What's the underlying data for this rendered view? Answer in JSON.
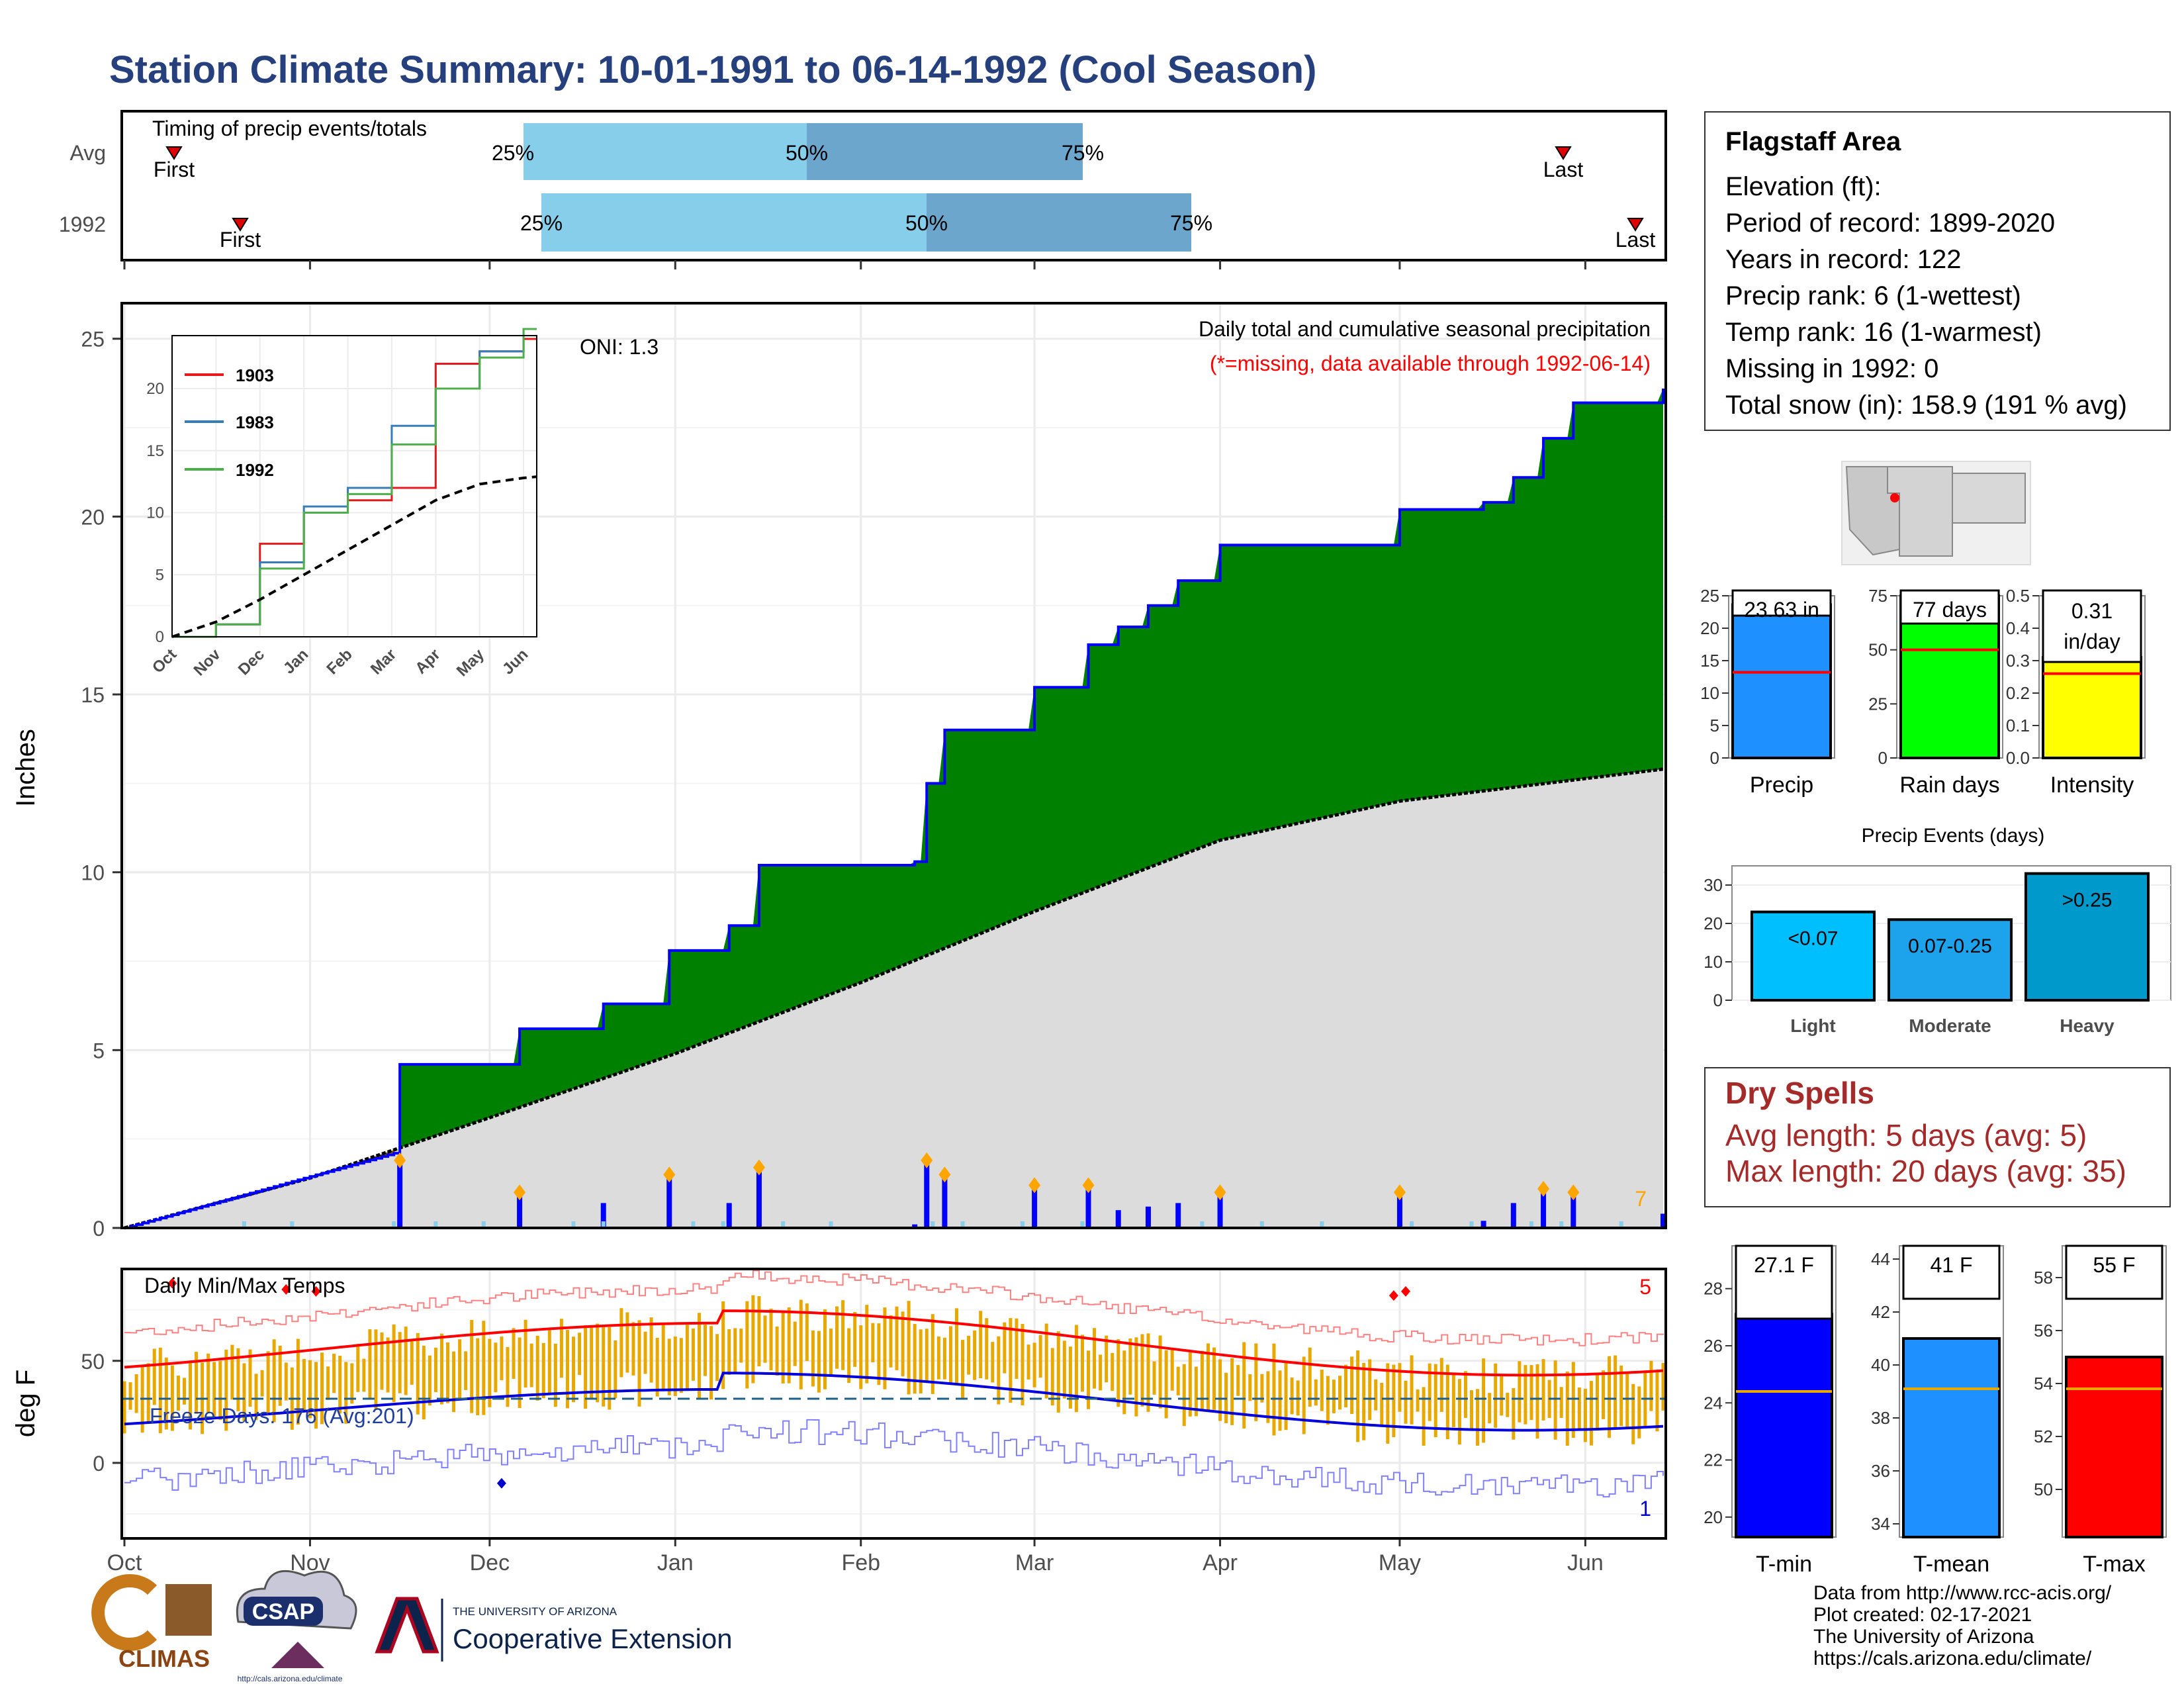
{
  "title": "Station Climate Summary: 10-01-1991 to 06-14-1992 (Cool Season)",
  "timing_panel": {
    "label": "Timing of precip events/totals",
    "rows": [
      {
        "name": "Avg",
        "first_label": "First",
        "last_label": "Last",
        "p25": "25%",
        "p50": "50%",
        "p75": "75%"
      },
      {
        "name": "1992",
        "first_label": "First",
        "last_label": "Last",
        "p25": "25%",
        "p50": "50%",
        "p75": "75%"
      }
    ]
  },
  "main_panel": {
    "ylabel": "Inches",
    "header": "Daily total and cumulative seasonal precipitation",
    "missing_note": "(*=missing, data available through 1992-06-14)",
    "oni": "ONI: 1.3",
    "count_label": "7",
    "yticks": [
      "0",
      "5",
      "10",
      "15",
      "20",
      "25"
    ],
    "months": [
      "Oct",
      "Nov",
      "Dec",
      "Jan",
      "Feb",
      "Mar",
      "Apr",
      "May",
      "Jun"
    ]
  },
  "inset": {
    "legend": [
      {
        "name": "1903",
        "color": "#e41a1c"
      },
      {
        "name": "1983",
        "color": "#377eb8"
      },
      {
        "name": "1992",
        "color": "#4daf4a"
      }
    ],
    "yticks": [
      "0",
      "5",
      "10",
      "15",
      "20"
    ],
    "months": [
      "Oct",
      "Nov",
      "Dec",
      "Jan",
      "Feb",
      "Mar",
      "Apr",
      "May",
      "Jun"
    ]
  },
  "temp_panel": {
    "ylabel": "deg F",
    "header": "Daily Min/Max Temps",
    "freeze_label": "Freeze Days: 176 (Avg:201)",
    "max_count": "5",
    "min_count": "1",
    "yticks": [
      "0",
      "50"
    ]
  },
  "station": {
    "name": "Flagstaff Area",
    "lines": [
      "Elevation (ft):",
      "Period of record: 1899-2020",
      "Years in record: 122",
      "Precip rank: 6 (1-wettest)",
      "Temp rank: 16 (1-warmest)",
      "Missing in 1992: 0",
      "Total snow (in): 158.9 (191 % avg)"
    ]
  },
  "precip_bars": [
    {
      "name": "Precip",
      "value": 23.63,
      "label": "23.63 in",
      "avg": 13.2,
      "color": "#1e90ff",
      "ymax": 25,
      "ticks": [
        "0",
        "5",
        "10",
        "15",
        "20",
        "25"
      ]
    },
    {
      "name": "Rain days",
      "value": 77,
      "label": "77 days",
      "avg": 50,
      "color": "#00ff00",
      "ymax": 75,
      "ticks": [
        "0",
        "25",
        "50",
        "75"
      ]
    },
    {
      "name": "Intensity",
      "value": 0.31,
      "label": "0.31 in/day",
      "avg": 0.26,
      "color": "#ffff00",
      "ymax": 0.5,
      "ticks": [
        "0.0",
        "0.1",
        "0.2",
        "0.3",
        "0.4",
        "0.5"
      ]
    }
  ],
  "events": {
    "title": "Precip Events (days)",
    "ticks": [
      "0",
      "10",
      "20",
      "30"
    ],
    "bars": [
      {
        "name": "Light",
        "label": "<0.07",
        "value": 23,
        "color": "#00bfff"
      },
      {
        "name": "Moderate",
        "label": "0.07-0.25",
        "value": 21,
        "color": "#1ca3ec"
      },
      {
        "name": "Heavy",
        "label": ">0.25",
        "value": 33,
        "color": "#0099cc"
      }
    ]
  },
  "dry_spells": {
    "title": "Dry Spells",
    "avg_line": "Avg length: 5 days (avg: 5)",
    "max_line": "Max length: 20 days (avg: 35)"
  },
  "temp_bars": [
    {
      "name": "T-min",
      "value": 27.1,
      "label": "27.1 F",
      "avg": 24.4,
      "color": "#0000ff",
      "ymin": 19.3,
      "ymax": 29.5,
      "ticks": [
        "20",
        "22",
        "24",
        "26",
        "28"
      ]
    },
    {
      "name": "T-mean",
      "value": 41,
      "label": "41 F",
      "avg": 39.1,
      "color": "#1e90ff",
      "ymin": 33.5,
      "ymax": 44.5,
      "ticks": [
        "34",
        "36",
        "38",
        "40",
        "42",
        "44"
      ]
    },
    {
      "name": "T-max",
      "value": 55,
      "label": "55 F",
      "avg": 53.8,
      "color": "#ff0000",
      "ymin": 48.2,
      "ymax": 59.2,
      "ticks": [
        "50",
        "52",
        "54",
        "56",
        "58"
      ]
    }
  ],
  "credits": [
    "Data from http://www.rcc-acis.org/",
    "Plot created: 02-17-2021",
    "The University of Arizona",
    "https://cals.arizona.edu/climate/"
  ],
  "logos": {
    "climas": "CLIMAS",
    "csap": "CSAP",
    "csap_url": "http://cals.arizona.edu/climate",
    "ua_small": "THE UNIVERSITY OF ARIZONA",
    "ua_big": "Cooperative Extension"
  },
  "chart_data": [
    {
      "type": "area",
      "title": "Daily total and cumulative seasonal precipitation",
      "ylabel": "Inches",
      "ylim": [
        0,
        26
      ],
      "x_start": "1991-10-01",
      "x_end": "1992-06-14",
      "series": [
        {
          "name": "1992",
          "x": [
            "1991-10-01",
            "1991-11-15",
            "1991-11-16",
            "1991-12-05",
            "1991-12-06",
            "1991-12-20",
            "1991-12-31",
            "1992-01-05",
            "1992-01-10",
            "1992-01-15",
            "1992-02-10",
            "1992-02-12",
            "1992-02-15",
            "1992-02-25",
            "1992-03-01",
            "1992-03-10",
            "1992-03-15",
            "1992-03-20",
            "1992-03-25",
            "1992-04-01",
            "1992-04-25",
            "1992-05-01",
            "1992-05-15",
            "1992-05-20",
            "1992-05-25",
            "1992-05-30",
            "1992-06-14"
          ],
          "values": [
            0,
            2.1,
            4.6,
            4.6,
            5.6,
            6.3,
            7.8,
            7.8,
            8.5,
            10.2,
            10.3,
            12.5,
            14.0,
            14.0,
            15.2,
            16.4,
            16.9,
            17.5,
            18.2,
            19.2,
            19.2,
            20.2,
            20.4,
            21.1,
            22.2,
            23.2,
            23.6
          ]
        },
        {
          "name": "Avg",
          "x": [
            "1991-10-01",
            "1991-11-01",
            "1991-12-01",
            "1992-01-01",
            "1992-02-01",
            "1992-03-01",
            "1992-04-01",
            "1992-05-01",
            "1992-06-14"
          ],
          "values": [
            0,
            1.4,
            3.1,
            4.9,
            6.9,
            8.9,
            10.9,
            12.0,
            12.9
          ]
        }
      ]
    },
    {
      "type": "line",
      "title": "",
      "x": [
        "Oct",
        "Nov",
        "Dec",
        "Jan",
        "Feb",
        "Mar",
        "Apr",
        "May",
        "Jun"
      ],
      "ylim": [
        0,
        24
      ],
      "series": [
        {
          "name": "1903",
          "values": [
            0,
            1,
            7.5,
            10,
            11,
            12,
            22,
            23,
            24
          ]
        },
        {
          "name": "1983",
          "values": [
            0,
            1,
            6,
            10.5,
            12,
            17,
            20,
            23,
            24.8
          ]
        },
        {
          "name": "1992",
          "values": [
            0,
            1,
            5.5,
            10,
            11.5,
            15.5,
            20,
            22.5,
            24.8
          ]
        },
        {
          "name": "",
          "values": [
            0,
            1.2,
            3,
            5,
            7,
            9,
            11,
            12.3,
            12.8
          ]
        }
      ]
    },
    {
      "type": "bar",
      "categories": [
        "Precip",
        "Rain days",
        "Intensity"
      ],
      "values": [
        23.63,
        77,
        0.31
      ]
    },
    {
      "type": "bar",
      "title": "Precip Events (days)",
      "categories": [
        "Light",
        "Moderate",
        "Heavy"
      ],
      "values": [
        23,
        21,
        33
      ]
    },
    {
      "type": "bar",
      "categories": [
        "T-min",
        "T-mean",
        "T-max"
      ],
      "values": [
        27.1,
        41,
        55
      ]
    }
  ]
}
